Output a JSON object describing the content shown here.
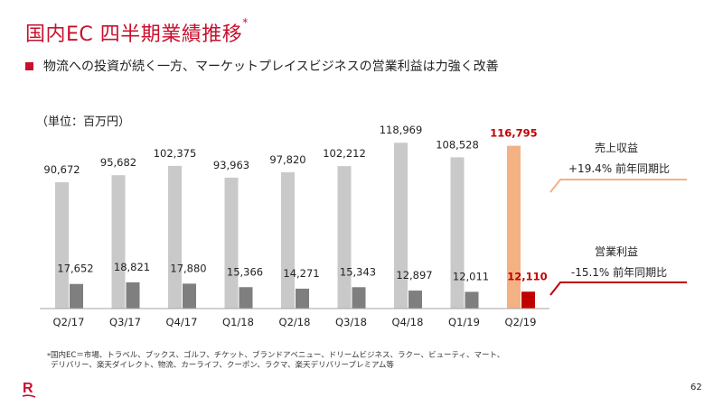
{
  "header": {
    "title": "国内EC 四半期業績推移",
    "title_mark": "*",
    "bullet_text": "物流への投資が続く一方、マーケットプレイスビジネスの営業利益は力強く改善"
  },
  "unit_label": "（単位：百万円）",
  "annotations": {
    "revenue": {
      "label": "売上収益",
      "change": "+19.4% 前年同期比"
    },
    "profit": {
      "label": "営業利益",
      "change": "-15.1% 前年同期比"
    }
  },
  "footnote": {
    "mark": "*",
    "line1": "国内EC＝市場、トラベル、ブックス、ゴルフ、チケット、ブランドアベニュー、ドリームビジネス、ラクー、ビューティ、マート、",
    "line2": "デリバリー、楽天ダイレクト、物流、カーライフ、クーポン、ラクマ、楽天デリバリープレミアム等"
  },
  "logo_text": "R",
  "page_number": "62",
  "colors": {
    "brand": "#c8102e",
    "revenue_bar": "#c9c9c9",
    "profit_bar": "#7f7f7f",
    "revenue_highlight": "#f4b183",
    "profit_highlight": "#c00000",
    "highlight_label": "#c00000"
  },
  "chart_data": {
    "type": "bar",
    "title": "国内EC 四半期業績推移",
    "xlabel": "",
    "ylabel": "百万円",
    "ylim": [
      0,
      123000
    ],
    "grid": false,
    "categories": [
      "Q2/17",
      "Q3/17",
      "Q4/17",
      "Q1/18",
      "Q2/18",
      "Q3/18",
      "Q4/18",
      "Q1/19",
      "Q2/19"
    ],
    "series": [
      {
        "name": "売上収益",
        "values": [
          90672,
          95682,
          102375,
          93963,
          97820,
          102212,
          118969,
          108528,
          116795
        ],
        "labels": [
          "90,672",
          "95,682",
          "102,375",
          "93,963",
          "97,820",
          "102,212",
          "118,969",
          "108,528",
          "116,795"
        ]
      },
      {
        "name": "営業利益",
        "values": [
          17652,
          18821,
          17880,
          15366,
          14271,
          15343,
          12897,
          12011,
          12110
        ],
        "labels": [
          "17,652",
          "18,821",
          "17,880",
          "15,366",
          "14,271",
          "15,343",
          "12,897",
          "12,011",
          "12,110"
        ]
      }
    ],
    "highlight_category": "Q2/19"
  }
}
